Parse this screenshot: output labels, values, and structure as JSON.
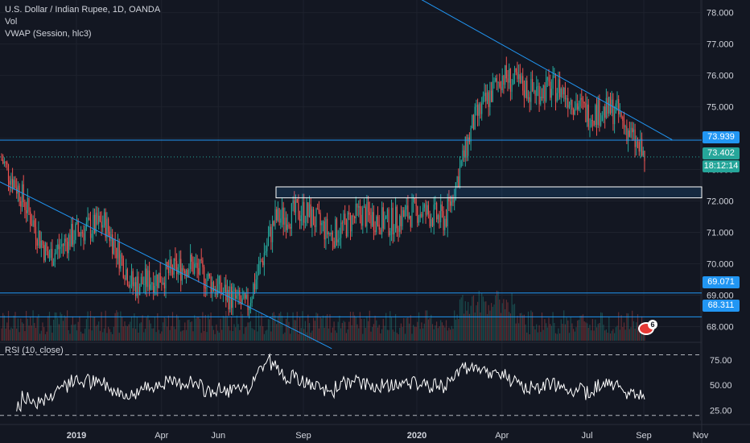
{
  "header": {
    "symbol_line": "U.S. Dollar / Indian Rupee, 1D, OANDA",
    "vol_label": "Vol",
    "vwap_label": "VWAP (Session, hlc3)",
    "rsi_label": "RSI (10, close)"
  },
  "price_tags": {
    "resistance_upper": "73.939",
    "last_price": "73.402",
    "countdown": "18:12:14",
    "support_mid": "69.071",
    "support_low": "68.311"
  },
  "events_badge": "6",
  "colors": {
    "background": "#131722",
    "line_blue": "#2196f3",
    "tag_blue": "#2196f3",
    "tag_teal": "#26a69a",
    "candle_up": "#26a69a",
    "candle_down": "#ef5350",
    "rsi_line": "#ffffff"
  },
  "chart_data": [
    {
      "type": "candlestick",
      "title": "U.S. Dollar / Indian Rupee, 1D, OANDA",
      "y_ticks": [
        "78.000",
        "77.000",
        "76.000",
        "75.000",
        "74.000",
        "73.000",
        "72.000",
        "71.000",
        "70.000",
        "69.000",
        "68.000"
      ],
      "x_ticks": [
        "2019",
        "Apr",
        "Jun",
        "Sep",
        "2020",
        "Apr",
        "Jul",
        "Sep",
        "Nov"
      ],
      "ylim": [
        67.5,
        78.4
      ],
      "close_series": {
        "x": [
          "2018-10",
          "2018-11",
          "2018-12",
          "2019-01",
          "2019-02",
          "2019-03",
          "2019-04",
          "2019-05",
          "2019-06",
          "2019-07",
          "2019-08",
          "2019-09",
          "2019-10",
          "2019-11",
          "2019-12",
          "2020-01",
          "2020-02",
          "2020-03",
          "2020-04",
          "2020-05",
          "2020-06",
          "2020-07",
          "2020-08",
          "2020-09"
        ],
        "values": [
          73.9,
          72.3,
          70.2,
          71.0,
          71.3,
          69.3,
          69.6,
          70.0,
          69.2,
          68.6,
          71.4,
          71.7,
          70.9,
          71.6,
          71.3,
          71.7,
          71.4,
          74.5,
          76.0,
          75.5,
          75.6,
          74.8,
          74.9,
          73.4
        ]
      },
      "horizontal_levels": [
        73.939,
        69.071,
        68.311
      ],
      "zone": [
        72.1,
        72.45
      ],
      "trendlines": [
        {
          "from": [
            "2018-09",
            73.2
          ],
          "to": [
            "2019-10",
            67.3
          ]
        },
        {
          "from": [
            "2019-12",
            79.0
          ],
          "to": [
            "2020-10",
            73.95
          ]
        }
      ],
      "last_price": 73.402
    },
    {
      "type": "line",
      "title": "RSI (10, close)",
      "y_ticks": [
        "75.00",
        "50.00",
        "25.00"
      ],
      "ylim": [
        15,
        90
      ],
      "bands": [
        80,
        20
      ]
    }
  ]
}
